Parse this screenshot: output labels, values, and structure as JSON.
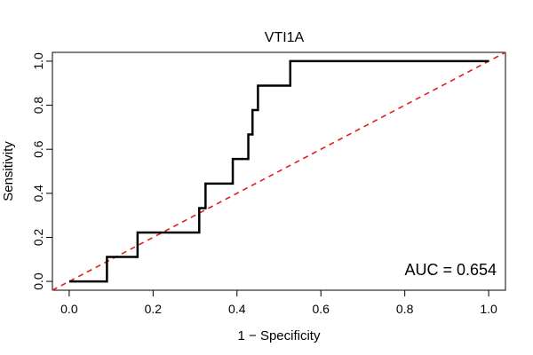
{
  "chart_data": {
    "type": "line",
    "title": "VTI1A",
    "xlabel": "1 − Specificity",
    "ylabel": "Sensitivity",
    "xlim": [
      -0.04,
      1.04
    ],
    "ylim": [
      -0.04,
      1.04
    ],
    "x_ticks": [
      0.0,
      0.2,
      0.4,
      0.6,
      0.8,
      1.0
    ],
    "y_ticks": [
      0.0,
      0.2,
      0.4,
      0.6,
      0.8,
      1.0
    ],
    "x_tick_labels": [
      "0.0",
      "0.2",
      "0.4",
      "0.6",
      "0.8",
      "1.0"
    ],
    "y_tick_labels": [
      "0.0",
      "0.2",
      "0.4",
      "0.6",
      "0.8",
      "1.0"
    ],
    "series": [
      {
        "name": "ROC curve",
        "color": "#000000",
        "style": "step",
        "points": [
          [
            0.0,
            0.0
          ],
          [
            0.09,
            0.0
          ],
          [
            0.09,
            0.111
          ],
          [
            0.163,
            0.111
          ],
          [
            0.163,
            0.222
          ],
          [
            0.31,
            0.222
          ],
          [
            0.31,
            0.333
          ],
          [
            0.325,
            0.333
          ],
          [
            0.325,
            0.444
          ],
          [
            0.39,
            0.444
          ],
          [
            0.39,
            0.556
          ],
          [
            0.427,
            0.556
          ],
          [
            0.427,
            0.667
          ],
          [
            0.437,
            0.667
          ],
          [
            0.437,
            0.778
          ],
          [
            0.45,
            0.778
          ],
          [
            0.45,
            0.889
          ],
          [
            0.527,
            0.889
          ],
          [
            0.527,
            1.0
          ],
          [
            1.0,
            1.0
          ]
        ]
      },
      {
        "name": "Reference diagonal",
        "color": "#e0201b",
        "style": "dashed",
        "points": [
          [
            -0.04,
            -0.04
          ],
          [
            1.04,
            1.04
          ]
        ]
      }
    ],
    "annotations": [
      {
        "text": "AUC = 0.654",
        "position": "bottom-right"
      }
    ],
    "grid": false
  }
}
